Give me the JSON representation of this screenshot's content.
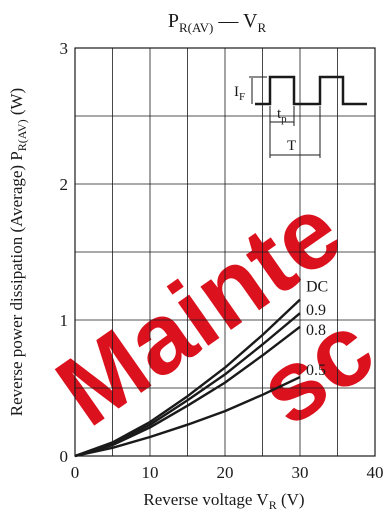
{
  "chart_data": {
    "type": "line",
    "title": {
      "main": "P",
      "main_sub": "R(AV)",
      "dash": " — ",
      "second": "V",
      "second_sub": "R"
    },
    "xlabel": {
      "text": "Reverse voltage  V",
      "sub": "R",
      "unit": "  (V)"
    },
    "ylabel": {
      "text": "Reverse power dissipation (Average)  P",
      "sub": "R(AV)",
      "unit": "  (W)"
    },
    "xlim": [
      0,
      40
    ],
    "ylim": [
      0,
      3
    ],
    "x_ticks": [
      0,
      10,
      20,
      30,
      40
    ],
    "y_ticks": [
      0,
      1,
      2,
      3
    ],
    "grid": true,
    "series": [
      {
        "name": "DC",
        "x": [
          0,
          5,
          10,
          15,
          20,
          25,
          30
        ],
        "y": [
          0,
          0.1,
          0.25,
          0.44,
          0.65,
          0.89,
          1.15
        ]
      },
      {
        "name": "0.9",
        "x": [
          0,
          5,
          10,
          15,
          20,
          25,
          30
        ],
        "y": [
          0,
          0.09,
          0.23,
          0.41,
          0.6,
          0.82,
          1.05
        ]
      },
      {
        "name": "0.8",
        "x": [
          0,
          5,
          10,
          15,
          20,
          25,
          30
        ],
        "y": [
          0,
          0.08,
          0.21,
          0.37,
          0.54,
          0.74,
          0.95
        ]
      },
      {
        "name": "0.5",
        "x": [
          0,
          5,
          10,
          15,
          20,
          25,
          30
        ],
        "y": [
          0,
          0.06,
          0.14,
          0.23,
          0.33,
          0.45,
          0.58
        ]
      }
    ],
    "inset": {
      "if_label": "I",
      "if_sub": "F",
      "tp_label": "t",
      "tp_sub": "p",
      "period_label": "T"
    }
  },
  "watermark": {
    "line1": "Mainte",
    "line2": "sc",
    "color": "#d9000d"
  }
}
